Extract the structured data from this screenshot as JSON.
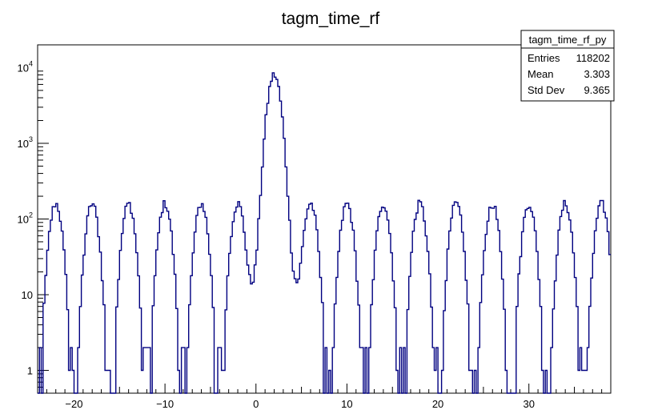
{
  "chart_data": {
    "type": "histogram",
    "title": "tagm_time_rf",
    "xlabel": "",
    "ylabel": "",
    "xlim": [
      -24,
      39
    ],
    "ylim": [
      0.5,
      20000
    ],
    "yscale": "log",
    "x_ticks": [
      "−20",
      "−10",
      "0",
      "10",
      "20",
      "30"
    ],
    "x_tick_values": [
      -20,
      -10,
      0,
      10,
      20,
      30
    ],
    "y_ticks": [
      {
        "value": 1,
        "base": "1",
        "exp": ""
      },
      {
        "value": 10,
        "base": "10",
        "exp": ""
      },
      {
        "value": 100,
        "base": "10",
        "exp": "2"
      },
      {
        "value": 1000,
        "base": "10",
        "exp": "3"
      },
      {
        "value": 10000,
        "base": "10",
        "exp": "4"
      }
    ],
    "line_color": "#000080",
    "main_peak": {
      "center": 2.0,
      "height": 8000,
      "sigma": 0.55
    },
    "side_peaks": {
      "centers": [
        -22.0,
        -18.0,
        -14.0,
        -10.0,
        -6.0,
        -2.0,
        6.0,
        10.0,
        14.0,
        18.0,
        22.0,
        26.0,
        30.0,
        34.0,
        38.0
      ],
      "height": 160
    },
    "grid": false,
    "stats_box": {
      "name": "tagm_time_rf_py",
      "rows": [
        {
          "label": "Entries",
          "value": "118202"
        },
        {
          "label": "Mean",
          "value": "3.303"
        },
        {
          "label": "Std Dev",
          "value": "9.365"
        }
      ]
    }
  }
}
